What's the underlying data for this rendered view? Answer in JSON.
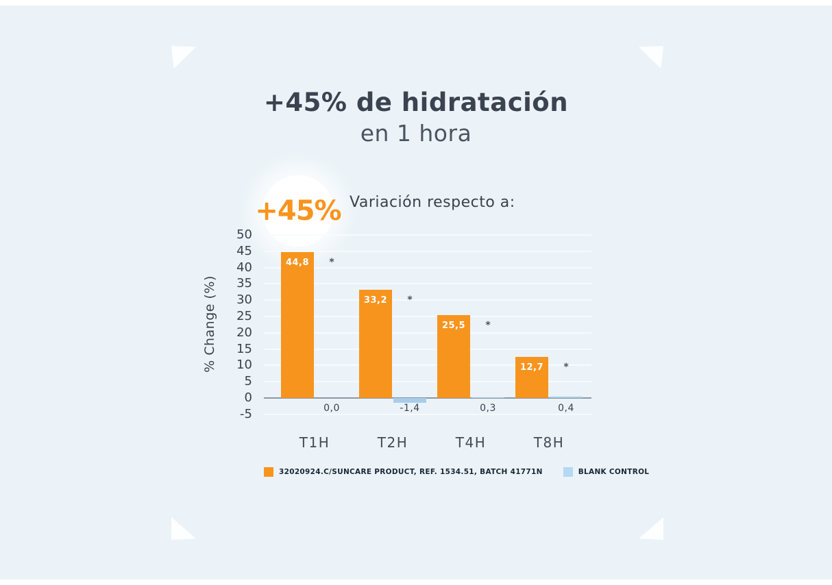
{
  "page": {
    "title_line1": "+45% de hidratación",
    "title_line2": "en 1 hora",
    "badge_text": "+45%",
    "variation_label": "Variación respecto a:"
  },
  "colors": {
    "background": "#EBF3F8",
    "product_orange": "#F7941E",
    "control_blue": "#A9CDE9",
    "legend_control_blue": "#B5D9F2",
    "axis_line": "#8C97A3",
    "gridline": "#F7FBFD",
    "title_text": "#3A434F",
    "tick_text": "#39424E",
    "bar_value_text": "#FFFFFF"
  },
  "chart_data": {
    "type": "bar",
    "title": "Variación respecto a:",
    "xlabel": "",
    "ylabel": "% Change (%)",
    "categories": [
      "T1H",
      "T2H",
      "T4H",
      "T8H"
    ],
    "series": [
      {
        "name": "32020924.C/SUNCARE PRODUCT, REF. 1534.51, BATCH 41771N",
        "color": "#F7941E",
        "values": [
          44.8,
          33.2,
          25.5,
          12.7
        ],
        "value_labels": [
          "44,8",
          "33,2",
          "25,5",
          "12,7"
        ]
      },
      {
        "name": "BLANK CONTROL",
        "color": "#A9CDE9",
        "values": [
          0.0,
          -1.4,
          0.3,
          0.4
        ],
        "value_labels": [
          "0,0",
          "-1,4",
          "0,3",
          "0,4"
        ]
      }
    ],
    "significance_markers": [
      "*",
      "*",
      "*",
      "*"
    ],
    "yticks": [
      50,
      45,
      40,
      35,
      30,
      25,
      20,
      15,
      10,
      5,
      0,
      -5
    ],
    "ylim": [
      -5,
      50
    ],
    "grid": true,
    "legend_position": "bottom"
  },
  "legend": {
    "items": [
      {
        "label": "32020924.C/SUNCARE PRODUCT, REF. 1534.51, BATCH 41771N",
        "color": "#F7941E"
      },
      {
        "label": "BLANK CONTROL",
        "color": "#B5D9F2"
      }
    ]
  }
}
